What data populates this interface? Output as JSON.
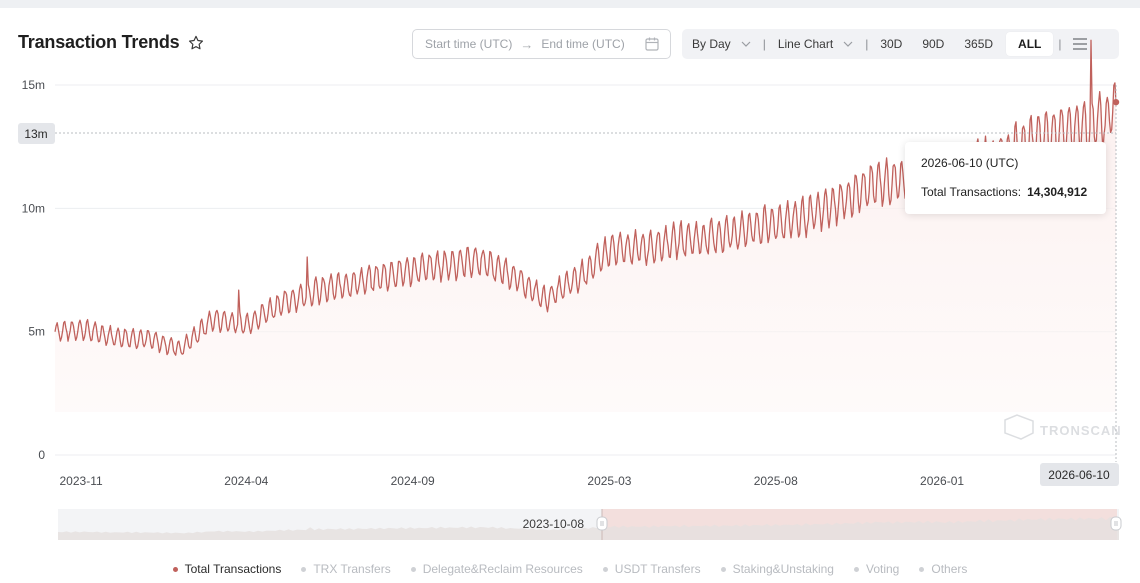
{
  "title": "Transaction Trends",
  "date_range": {
    "start_placeholder": "Start time (UTC)",
    "end_placeholder": "End time (UTC)"
  },
  "toolbar": {
    "granularity": "By Day",
    "chart_type": "Line Chart",
    "ranges": [
      "30D",
      "90D",
      "365D",
      "ALL"
    ],
    "selected_range": "ALL"
  },
  "tooltip": {
    "date": "2026-06-10 (UTC)",
    "label": "Total Transactions:",
    "value": "14,304,912"
  },
  "crosshair_y_label": "13m",
  "crosshair_x_label": "2026-06-10",
  "slider_start_label": "2023-10-08",
  "watermark": "TRONSCAN",
  "legend": [
    {
      "label": "Total Transactions",
      "active": true
    },
    {
      "label": "TRX Transfers",
      "active": false
    },
    {
      "label": "Delegate&Reclaim Resources",
      "active": false
    },
    {
      "label": "USDT Transfers",
      "active": false
    },
    {
      "label": "Staking&Unstaking",
      "active": false
    },
    {
      "label": "Voting",
      "active": false
    },
    {
      "label": "Others",
      "active": false
    }
  ],
  "colors": {
    "line": "#c0615c",
    "area_fill": "#fdf3f2",
    "grid": "#eceef1",
    "slider_selected": "#f3dfdd"
  },
  "chart_data": {
    "type": "line",
    "series": [
      {
        "name": "Total Transactions",
        "x": [
          "2023-10-08",
          "2023-11-01",
          "2023-12-01",
          "2024-01-01",
          "2024-02-01",
          "2024-03-01",
          "2024-04-01",
          "2024-05-01",
          "2024-06-01",
          "2024-07-01",
          "2024-08-01",
          "2024-09-01",
          "2024-10-01",
          "2024-11-01",
          "2024-12-01",
          "2025-01-01",
          "2025-02-01",
          "2025-03-01",
          "2025-04-01",
          "2025-05-01",
          "2025-06-01",
          "2025-07-01",
          "2025-08-01",
          "2025-09-01",
          "2025-10-01",
          "2025-11-01",
          "2025-12-01",
          "2026-01-01",
          "2026-02-01",
          "2026-03-01",
          "2026-04-01",
          "2026-05-01",
          "2026-06-01",
          "2026-06-10"
        ],
        "values": [
          5000000,
          5100000,
          4800000,
          4700000,
          4300000,
          5500000,
          5300000,
          6100000,
          6600000,
          6900000,
          7200000,
          7500000,
          7700000,
          7900000,
          7300000,
          6300000,
          7200000,
          8300000,
          8400000,
          8700000,
          8800000,
          9100000,
          9400000,
          9700000,
          10300000,
          11000000,
          11200000,
          11100000,
          11800000,
          12200000,
          12900000,
          13200000,
          13600000,
          14304912
        ]
      }
    ],
    "y_ticks": [
      "0",
      "5m",
      "10m",
      "15m"
    ],
    "x_ticks": [
      "2023-11",
      "2024-04",
      "2024-09",
      "2025-03",
      "2025-08",
      "2026-01"
    ],
    "ylim": [
      0,
      15000000
    ],
    "xlim": [
      "2023-10-08",
      "2026-06-10"
    ],
    "grid": true,
    "legend_position": "bottom"
  }
}
